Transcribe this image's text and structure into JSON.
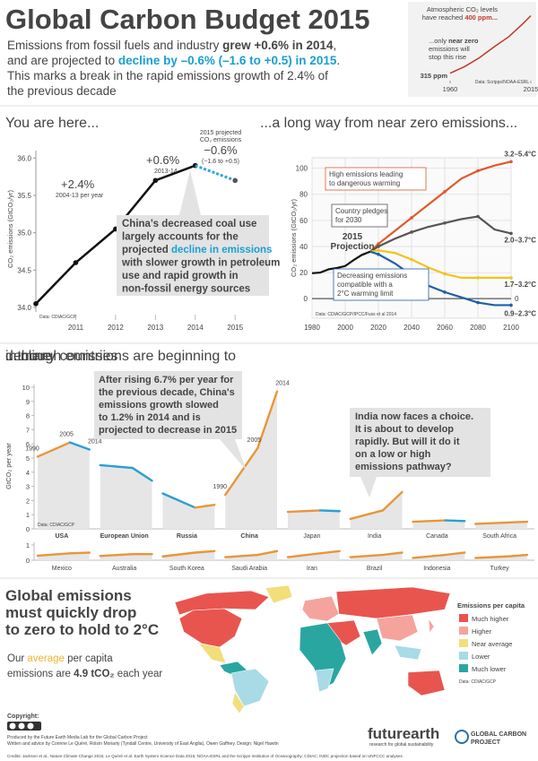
{
  "header": {
    "title": "Global Carbon Budget 2015",
    "subtitle": [
      [
        "Emissions from fossil fuels and industry ",
        "grew +0.6% in 2014",
        ","
      ],
      [
        "and are projected to ",
        "decline by –0.6% (–1.6 to +0.5) in 2015",
        "."
      ],
      "This marks a break in the rapid emissions growth of 2.4% of",
      "the previous decade"
    ]
  },
  "chart_data": [
    {
      "type": "line",
      "title": [
        "Atmospheric CO₂ levels",
        [
          "have reached ",
          "400 ppm..."
        ]
      ],
      "annotation": [
        [
          "...only ",
          "near zero"
        ],
        "emissions will",
        "stop this rise"
      ],
      "start_label": "315 ppm",
      "x": [
        1960,
        1970,
        1980,
        1990,
        2000,
        2010,
        2015
      ],
      "values": [
        315,
        325,
        338,
        354,
        369,
        389,
        400
      ],
      "xlim": [
        1960,
        2015
      ],
      "xticks": [
        1960,
        2015
      ],
      "ylim": [
        312,
        402
      ],
      "color": "#c0392b",
      "source": "Data: Scripps/NOAA-ESRL"
    },
    {
      "type": "line",
      "title": "You are here...",
      "y_label": "CO₂ emissions (GtCO₂/yr)",
      "x": [
        2010,
        2011,
        2012,
        2013,
        2014
      ],
      "values": [
        34.05,
        34.6,
        35.05,
        35.7,
        35.9
      ],
      "color": "#111111",
      "projection": {
        "x": [
          2014,
          2015
        ],
        "values": [
          35.9,
          35.7
        ],
        "color": "#29a9d6"
      },
      "xlim": [
        2010,
        2015.4
      ],
      "xticks": [
        2011,
        2012,
        2013,
        2014,
        2015
      ],
      "ylim": [
        34,
        36.1
      ],
      "yticks": [
        {
          "value": 34,
          "label": "34.0"
        },
        34.5,
        {
          "value": 35,
          "label": "35.0"
        },
        35.5,
        {
          "value": 36,
          "label": "36.0"
        }
      ],
      "annotations": {
        "growth_decade": "+2.4%",
        "growth_decade_note": "2004-13 per year",
        "growth_2014": "+0.6%",
        "growth_2014_note": "2013-14",
        "projection_title": [
          "2015 projected",
          "CO₂ emissions"
        ],
        "projection_change": "−0.6%",
        "projection_range": "(−1.6 to +0.5)",
        "callout": [
          "China's decreased coal use",
          "largely accounts for the",
          [
            "projected ",
            "decline in emissions"
          ],
          "with slower growth in petroleum",
          "use and rapid growth in",
          "non-fossil energy sources"
        ]
      },
      "source": "Data: CDIAC/GCP"
    },
    {
      "type": "line",
      "title": "...a long way from near zero emissions...",
      "y_label": "CO₂ emissions (GtCO₂/yr)",
      "historical": {
        "x": [
          1980,
          1985,
          1990,
          1995,
          2000,
          2005,
          2010,
          2015
        ],
        "values": [
          19.5,
          20,
          22.5,
          23.5,
          25,
          29.5,
          33.5,
          36
        ],
        "color": "#111111"
      },
      "x": [
        2015,
        2020,
        2030,
        2040,
        2050,
        2060,
        2070,
        2080,
        2090,
        2100
      ],
      "series": [
        {
          "name": "3.2–5.4°C",
          "color": "#e0582c",
          "values": [
            36,
            42,
            52,
            62,
            72,
            82,
            92,
            98,
            102,
            105
          ]
        },
        {
          "name": "2.0–3.7°C",
          "color": "#555555",
          "values": [
            36,
            40,
            46,
            51,
            55,
            58,
            61,
            63,
            53,
            50
          ]
        },
        {
          "name": "1.7–3.2°C",
          "color": "#f2c31c",
          "values": [
            36,
            37,
            35,
            30,
            24,
            19,
            16,
            16,
            16,
            16
          ]
        },
        {
          "name": "0.9–2.3°C",
          "color": "#1f5fa6",
          "values": [
            36,
            34,
            27,
            18,
            10,
            5,
            1,
            -3,
            -5,
            -5
          ]
        }
      ],
      "xlim": [
        1980,
        2100
      ],
      "xticks": [
        1980,
        2000,
        2020,
        2040,
        2060,
        2080,
        2100
      ],
      "ylim": [
        -15,
        108
      ],
      "yticks": [
        0,
        20,
        40,
        60,
        80,
        100
      ],
      "grid": true,
      "reference_line": 0,
      "annotations": {
        "high": [
          "High emissions leading",
          "to dangerous warming"
        ],
        "pledges": [
          "Country pledges",
          "for 2030"
        ],
        "projection": [
          "2015",
          "Projection"
        ],
        "decreasing": [
          "Decreasing emissions",
          "compatible with a",
          "2°C warming limit"
        ]
      },
      "source": "Data: CDIAC/GCP/IPCC/Fuss et al 2014"
    },
    {
      "type": "line",
      "title": [
        "...though emissions are beginning to ",
        "decline",
        " in many countries"
      ],
      "y_label": "GtCO₂ per year",
      "x": [
        1990,
        2005,
        2014
      ],
      "xlim": [
        1990,
        2014
      ],
      "ylim": [
        0,
        10
      ],
      "yticks": [
        0,
        1,
        2,
        3,
        4,
        5,
        6,
        7,
        8,
        9,
        10
      ],
      "rise_color": "#e8963a",
      "fall_color": "#2b9fd4",
      "series": [
        {
          "name": "USA",
          "values": [
            5.1,
            6.1,
            5.6
          ]
        },
        {
          "name": "European Union",
          "values": [
            4.5,
            4.3,
            3.4
          ]
        },
        {
          "name": "Russia",
          "values": [
            2.5,
            1.5,
            1.7
          ]
        },
        {
          "name": "China",
          "values": [
            2.4,
            5.7,
            9.7
          ]
        },
        {
          "name": "Japan",
          "values": [
            1.2,
            1.3,
            1.25
          ]
        },
        {
          "name": "India",
          "values": [
            0.7,
            1.3,
            2.6
          ]
        },
        {
          "name": "Canada",
          "values": [
            0.5,
            0.6,
            0.55
          ]
        },
        {
          "name": "South Africa",
          "values": [
            0.35,
            0.45,
            0.5
          ]
        }
      ],
      "annotations": {
        "china": [
          "After rising 6.7% per year for",
          "the previous decade, China's",
          "emissions growth slowed",
          "to 1.2% in 2014 and is",
          "projected to decrease in 2015"
        ],
        "india": [
          "India now faces a choice.",
          "It is about to develop",
          "rapidly. But will it do it",
          "on a low or high",
          "emissions pathway?"
        ]
      },
      "source": "Data: CDIAC/GCP"
    },
    {
      "type": "line",
      "x": [
        1990,
        2005,
        2014
      ],
      "xlim": [
        1990,
        2014
      ],
      "ylim": [
        0,
        1
      ],
      "yticks": [
        0,
        1
      ],
      "rise_color": "#e8963a",
      "fall_color": "#2b9fd4",
      "series": [
        {
          "name": "Mexico",
          "values": [
            0.3,
            0.45,
            0.5
          ]
        },
        {
          "name": "Australia",
          "values": [
            0.28,
            0.4,
            0.4
          ]
        },
        {
          "name": "South Korea",
          "values": [
            0.25,
            0.5,
            0.6
          ]
        },
        {
          "name": "Saudi Arabia",
          "values": [
            0.2,
            0.35,
            0.6
          ]
        },
        {
          "name": "Iran",
          "values": [
            0.2,
            0.45,
            0.6
          ]
        },
        {
          "name": "Brazil",
          "values": [
            0.2,
            0.35,
            0.5
          ]
        },
        {
          "name": "Indonesia",
          "values": [
            0.15,
            0.35,
            0.5
          ]
        },
        {
          "name": "Turkey",
          "values": [
            0.15,
            0.25,
            0.35
          ]
        }
      ]
    }
  ],
  "map": {
    "title": [
      "Global emissions",
      "must quickly drop",
      "to zero to hold to 2°C"
    ],
    "text": [
      [
        "Our ",
        "average",
        " per capita"
      ],
      [
        "emissions are ",
        "4.9 tCO₂",
        " each year"
      ]
    ],
    "legend_title": "Emissions per capita",
    "legend": [
      {
        "name": "Much higher",
        "color": "#e8554e"
      },
      {
        "name": "Higher",
        "color": "#f5a49d"
      },
      {
        "name": "Near average",
        "color": "#f2df7a"
      },
      {
        "name": "Lower",
        "color": "#a8dbe6"
      },
      {
        "name": "Much lower",
        "color": "#2aa6a1"
      }
    ],
    "source": "Data: CDIAC/GCP"
  },
  "footer": {
    "copyright": "Copyright:",
    "credits": [
      "Produced by the Future Earth Media Lab for the Global Carbon Project",
      "Written and advice by Corinne Le Quéré, Róisín Moriarty (Tyndall Centre, University of East Anglia), Owen Gaffney. Design: Nigel Hawtin"
    ],
    "sources": "Credits: Jackson et al., Nature Climate Change 2015; Le Quéré et al. Earth System Science Data 2015; NOAA-ESRL and the Scripps Institution of Oceanography; CDIAC; INDC projection based on UNFCCC analyses",
    "logo": "futurearth",
    "logo_tagline": "research for global sustainability",
    "gcp": [
      "GLOBAL CARBON",
      "PROJECT"
    ]
  }
}
